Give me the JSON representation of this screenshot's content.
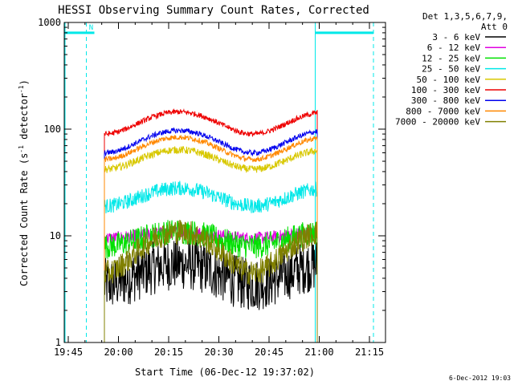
{
  "chart_data": {
    "type": "line",
    "title": "HESSI Observing Summary Count Rates, Corrected",
    "xlabel": "Start Time (06-Dec-12 19:37:02)",
    "ylabel_prefix": "Corrected Count Rate (s",
    "ylabel_mid": " detector",
    "ylabel_suffix": ")",
    "ylabel_sup": "-1",
    "y_scale": "log",
    "ylim": [
      1,
      1000
    ],
    "y_ticks": [
      {
        "value": 1,
        "label": "1"
      },
      {
        "value": 10,
        "label": "10"
      },
      {
        "value": 100,
        "label": "100"
      },
      {
        "value": 1000,
        "label": "1000"
      }
    ],
    "x_range_minutes": [
      19.73,
      21.33
    ],
    "x_ticks": [
      {
        "value": 19.75,
        "label": "19:45"
      },
      {
        "value": 20.0,
        "label": "20:00"
      },
      {
        "value": 20.25,
        "label": "20:15"
      },
      {
        "value": 20.5,
        "label": "20:30"
      },
      {
        "value": 20.75,
        "label": "20:45"
      },
      {
        "value": 21.0,
        "label": "21:00"
      },
      {
        "value": 21.25,
        "label": "21:15"
      }
    ],
    "legend_header": [
      "Det 1,3,5,6,7,9,",
      "Att 0"
    ],
    "legend_position": "right",
    "series": [
      {
        "name": "3 - 6 keV",
        "color": "#000000",
        "base": 3.5,
        "amp": 2.0,
        "noise": 0.25
      },
      {
        "name": "6 - 12 keV",
        "color": "#e000e0",
        "base": 9.5,
        "amp": 1.4,
        "noise": 0.06
      },
      {
        "name": "12 - 25 keV",
        "color": "#00e000",
        "base": 8.0,
        "amp": 3.0,
        "noise": 0.12
      },
      {
        "name": "25 - 50 keV",
        "color": "#00e8e8",
        "base": 19.0,
        "amp": 9.0,
        "noise": 0.07
      },
      {
        "name": "50 - 100 keV",
        "color": "#d8c800",
        "base": 42.0,
        "amp": 22.0,
        "noise": 0.035
      },
      {
        "name": "100 - 300 keV",
        "color": "#ee0000",
        "base": 90.0,
        "amp": 55.0,
        "noise": 0.025
      },
      {
        "name": "300 - 800 keV",
        "color": "#0000ee",
        "base": 60.0,
        "amp": 37.0,
        "noise": 0.025
      },
      {
        "name": "800 - 7000 keV",
        "color": "#ff8800",
        "base": 52.0,
        "amp": 32.0,
        "noise": 0.025
      },
      {
        "name": "7000 - 20000 keV",
        "color": "#808000",
        "base": 4.5,
        "amp": 6.5,
        "noise": 0.12
      }
    ],
    "data_interval": [
      19.93,
      20.99
    ],
    "saa_flags": [
      {
        "label": "",
        "x0": 19.73,
        "x1": 19.84,
        "level": 800
      },
      {
        "label": "N",
        "x0": 19.84,
        "x1": 19.88,
        "level": 800
      },
      {
        "label": "",
        "x0": 20.98,
        "x1": 21.27,
        "level": 800
      }
    ],
    "vertical_markers": [
      {
        "x": 19.84,
        "style": "dashed"
      },
      {
        "x": 20.98,
        "style": "solid"
      },
      {
        "x": 21.27,
        "style": "dashed"
      }
    ],
    "marker_color": "#00e8e8",
    "footer_date": "6-Dec-2012 19:03"
  }
}
